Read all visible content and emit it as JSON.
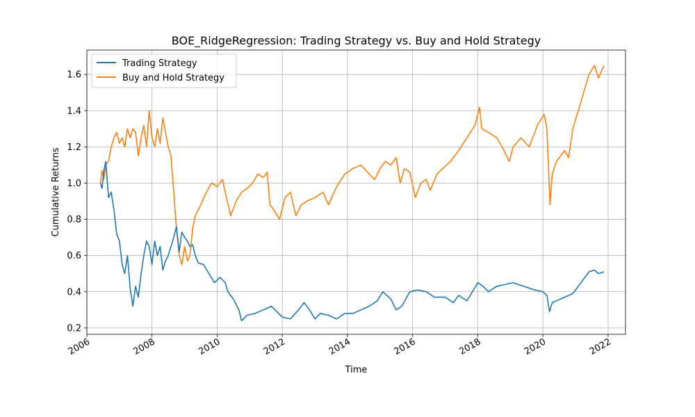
{
  "chart_data": {
    "type": "line",
    "title": "BOE_RidgeRegression: Trading Strategy vs. Buy and Hold Strategy",
    "xlabel": "Time",
    "ylabel": "Cumulative Returns",
    "xlim": [
      "2006-01-01",
      "2022-07-15"
    ],
    "ylim": [
      0.165,
      1.735
    ],
    "x_ticks": [
      "2006",
      "2008",
      "2010",
      "2012",
      "2014",
      "2016",
      "2018",
      "2020",
      "2022"
    ],
    "y_ticks": [
      "0.2",
      "0.4",
      "0.6",
      "0.8",
      "1.0",
      "1.2",
      "1.4",
      "1.6"
    ],
    "grid": true,
    "legend_position": "top-left",
    "series": [
      {
        "name": "Trading Strategy",
        "color": "#1f77b4",
        "points": [
          [
            "2006-06-01",
            1.0
          ],
          [
            "2006-06-20",
            0.97
          ],
          [
            "2006-07-10",
            1.07
          ],
          [
            "2006-08-01",
            1.12
          ],
          [
            "2006-09-01",
            0.92
          ],
          [
            "2006-10-01",
            0.95
          ],
          [
            "2006-11-01",
            0.85
          ],
          [
            "2006-12-01",
            0.72
          ],
          [
            "2007-01-01",
            0.68
          ],
          [
            "2007-02-01",
            0.55
          ],
          [
            "2007-03-01",
            0.5
          ],
          [
            "2007-04-01",
            0.6
          ],
          [
            "2007-05-01",
            0.42
          ],
          [
            "2007-06-01",
            0.32
          ],
          [
            "2007-07-01",
            0.43
          ],
          [
            "2007-08-01",
            0.37
          ],
          [
            "2007-09-01",
            0.5
          ],
          [
            "2007-10-01",
            0.6
          ],
          [
            "2007-11-01",
            0.68
          ],
          [
            "2007-12-01",
            0.65
          ],
          [
            "2008-01-01",
            0.55
          ],
          [
            "2008-02-01",
            0.68
          ],
          [
            "2008-03-01",
            0.6
          ],
          [
            "2008-04-01",
            0.65
          ],
          [
            "2008-05-01",
            0.52
          ],
          [
            "2008-06-01",
            0.57
          ],
          [
            "2008-07-01",
            0.6
          ],
          [
            "2008-08-01",
            0.65
          ],
          [
            "2008-09-01",
            0.7
          ],
          [
            "2008-10-01",
            0.76
          ],
          [
            "2008-11-01",
            0.62
          ],
          [
            "2008-12-01",
            0.73
          ],
          [
            "2009-01-01",
            0.7
          ],
          [
            "2009-02-01",
            0.68
          ],
          [
            "2009-03-01",
            0.65
          ],
          [
            "2009-04-01",
            0.66
          ],
          [
            "2009-05-01",
            0.6
          ],
          [
            "2009-06-01",
            0.56
          ],
          [
            "2009-08-01",
            0.55
          ],
          [
            "2009-10-01",
            0.5
          ],
          [
            "2009-12-01",
            0.45
          ],
          [
            "2010-02-01",
            0.48
          ],
          [
            "2010-04-01",
            0.45
          ],
          [
            "2010-05-01",
            0.4
          ],
          [
            "2010-07-01",
            0.36
          ],
          [
            "2010-09-01",
            0.3
          ],
          [
            "2010-10-01",
            0.24
          ],
          [
            "2010-12-01",
            0.27
          ],
          [
            "2011-03-01",
            0.28
          ],
          [
            "2011-06-01",
            0.3
          ],
          [
            "2011-09-01",
            0.32
          ],
          [
            "2011-11-01",
            0.29
          ],
          [
            "2012-01-01",
            0.26
          ],
          [
            "2012-04-01",
            0.25
          ],
          [
            "2012-07-01",
            0.3
          ],
          [
            "2012-09-01",
            0.34
          ],
          [
            "2012-11-01",
            0.3
          ],
          [
            "2013-01-01",
            0.25
          ],
          [
            "2013-03-01",
            0.28
          ],
          [
            "2013-06-01",
            0.27
          ],
          [
            "2013-09-01",
            0.25
          ],
          [
            "2013-12-01",
            0.28
          ],
          [
            "2014-03-01",
            0.28
          ],
          [
            "2014-06-01",
            0.3
          ],
          [
            "2014-09-01",
            0.32
          ],
          [
            "2014-12-01",
            0.35
          ],
          [
            "2015-02-01",
            0.4
          ],
          [
            "2015-05-01",
            0.36
          ],
          [
            "2015-07-01",
            0.3
          ],
          [
            "2015-09-01",
            0.32
          ],
          [
            "2015-12-01",
            0.4
          ],
          [
            "2016-03-01",
            0.41
          ],
          [
            "2016-06-01",
            0.4
          ],
          [
            "2016-09-01",
            0.37
          ],
          [
            "2017-01-01",
            0.37
          ],
          [
            "2017-04-01",
            0.34
          ],
          [
            "2017-06-01",
            0.38
          ],
          [
            "2017-09-01",
            0.35
          ],
          [
            "2018-01-01",
            0.45
          ],
          [
            "2018-03-01",
            0.43
          ],
          [
            "2018-05-01",
            0.4
          ],
          [
            "2018-08-01",
            0.43
          ],
          [
            "2018-11-01",
            0.44
          ],
          [
            "2019-02-01",
            0.45
          ],
          [
            "2019-06-01",
            0.43
          ],
          [
            "2019-10-01",
            0.41
          ],
          [
            "2020-01-01",
            0.4
          ],
          [
            "2020-02-15",
            0.38
          ],
          [
            "2020-03-15",
            0.29
          ],
          [
            "2020-04-15",
            0.34
          ],
          [
            "2020-06-01",
            0.35
          ],
          [
            "2020-09-01",
            0.37
          ],
          [
            "2020-12-01",
            0.39
          ],
          [
            "2021-02-01",
            0.43
          ],
          [
            "2021-04-01",
            0.47
          ],
          [
            "2021-06-01",
            0.51
          ],
          [
            "2021-08-01",
            0.52
          ],
          [
            "2021-09-15",
            0.5
          ],
          [
            "2021-11-15",
            0.51
          ]
        ]
      },
      {
        "name": "Buy and Hold Strategy",
        "color": "#ff7f0e",
        "points": [
          [
            "2006-06-01",
            1.0
          ],
          [
            "2006-06-20",
            1.07
          ],
          [
            "2006-07-10",
            1.02
          ],
          [
            "2006-08-01",
            1.1
          ],
          [
            "2006-09-01",
            1.12
          ],
          [
            "2006-10-01",
            1.2
          ],
          [
            "2006-11-01",
            1.25
          ],
          [
            "2006-12-01",
            1.28
          ],
          [
            "2007-01-01",
            1.22
          ],
          [
            "2007-02-01",
            1.25
          ],
          [
            "2007-03-01",
            1.2
          ],
          [
            "2007-04-01",
            1.3
          ],
          [
            "2007-05-01",
            1.25
          ],
          [
            "2007-06-01",
            1.3
          ],
          [
            "2007-07-01",
            1.28
          ],
          [
            "2007-08-01",
            1.15
          ],
          [
            "2007-09-01",
            1.25
          ],
          [
            "2007-10-01",
            1.32
          ],
          [
            "2007-11-01",
            1.2
          ],
          [
            "2007-12-01",
            1.4
          ],
          [
            "2008-01-01",
            1.25
          ],
          [
            "2008-02-01",
            1.2
          ],
          [
            "2008-03-01",
            1.3
          ],
          [
            "2008-04-01",
            1.22
          ],
          [
            "2008-05-01",
            1.36
          ],
          [
            "2008-06-01",
            1.28
          ],
          [
            "2008-07-01",
            1.2
          ],
          [
            "2008-08-01",
            1.15
          ],
          [
            "2008-09-01",
            0.95
          ],
          [
            "2008-10-01",
            0.75
          ],
          [
            "2008-11-01",
            0.6
          ],
          [
            "2008-12-01",
            0.55
          ],
          [
            "2009-01-01",
            0.65
          ],
          [
            "2009-02-01",
            0.57
          ],
          [
            "2009-03-01",
            0.6
          ],
          [
            "2009-04-01",
            0.75
          ],
          [
            "2009-05-01",
            0.82
          ],
          [
            "2009-07-01",
            0.88
          ],
          [
            "2009-09-01",
            0.95
          ],
          [
            "2009-11-01",
            1.0
          ],
          [
            "2010-01-01",
            0.98
          ],
          [
            "2010-03-01",
            1.02
          ],
          [
            "2010-04-01",
            0.95
          ],
          [
            "2010-06-01",
            0.82
          ],
          [
            "2010-08-01",
            0.9
          ],
          [
            "2010-10-01",
            0.95
          ],
          [
            "2010-12-01",
            0.97
          ],
          [
            "2011-02-01",
            1.0
          ],
          [
            "2011-04-01",
            1.05
          ],
          [
            "2011-06-01",
            1.03
          ],
          [
            "2011-07-15",
            1.06
          ],
          [
            "2011-08-15",
            0.88
          ],
          [
            "2011-10-01",
            0.85
          ],
          [
            "2011-12-01",
            0.8
          ],
          [
            "2012-02-01",
            0.92
          ],
          [
            "2012-04-01",
            0.95
          ],
          [
            "2012-06-01",
            0.82
          ],
          [
            "2012-08-01",
            0.88
          ],
          [
            "2012-10-01",
            0.9
          ],
          [
            "2013-01-01",
            0.92
          ],
          [
            "2013-04-01",
            0.95
          ],
          [
            "2013-06-01",
            0.88
          ],
          [
            "2013-09-01",
            0.98
          ],
          [
            "2013-12-01",
            1.05
          ],
          [
            "2014-03-01",
            1.08
          ],
          [
            "2014-06-01",
            1.1
          ],
          [
            "2014-09-01",
            1.05
          ],
          [
            "2014-11-01",
            1.02
          ],
          [
            "2015-01-01",
            1.08
          ],
          [
            "2015-03-01",
            1.12
          ],
          [
            "2015-05-01",
            1.1
          ],
          [
            "2015-07-01",
            1.14
          ],
          [
            "2015-08-15",
            1.0
          ],
          [
            "2015-10-01",
            1.08
          ],
          [
            "2015-12-01",
            1.06
          ],
          [
            "2016-02-01",
            0.92
          ],
          [
            "2016-04-01",
            1.0
          ],
          [
            "2016-06-01",
            1.02
          ],
          [
            "2016-07-15",
            0.96
          ],
          [
            "2016-10-01",
            1.05
          ],
          [
            "2016-12-01",
            1.08
          ],
          [
            "2017-03-01",
            1.12
          ],
          [
            "2017-06-01",
            1.18
          ],
          [
            "2017-09-01",
            1.25
          ],
          [
            "2017-12-01",
            1.32
          ],
          [
            "2018-01-20",
            1.42
          ],
          [
            "2018-02-15",
            1.3
          ],
          [
            "2018-05-01",
            1.28
          ],
          [
            "2018-08-01",
            1.25
          ],
          [
            "2018-10-01",
            1.2
          ],
          [
            "2018-12-20",
            1.12
          ],
          [
            "2019-02-01",
            1.2
          ],
          [
            "2019-05-01",
            1.25
          ],
          [
            "2019-08-01",
            1.2
          ],
          [
            "2019-11-01",
            1.32
          ],
          [
            "2020-01-15",
            1.38
          ],
          [
            "2020-02-15",
            1.3
          ],
          [
            "2020-03-20",
            0.88
          ],
          [
            "2020-04-15",
            1.05
          ],
          [
            "2020-06-01",
            1.12
          ],
          [
            "2020-09-01",
            1.18
          ],
          [
            "2020-10-15",
            1.14
          ],
          [
            "2020-12-01",
            1.3
          ],
          [
            "2021-02-01",
            1.4
          ],
          [
            "2021-04-01",
            1.5
          ],
          [
            "2021-06-01",
            1.6
          ],
          [
            "2021-08-01",
            1.65
          ],
          [
            "2021-09-15",
            1.58
          ],
          [
            "2021-11-15",
            1.65
          ]
        ]
      }
    ]
  }
}
